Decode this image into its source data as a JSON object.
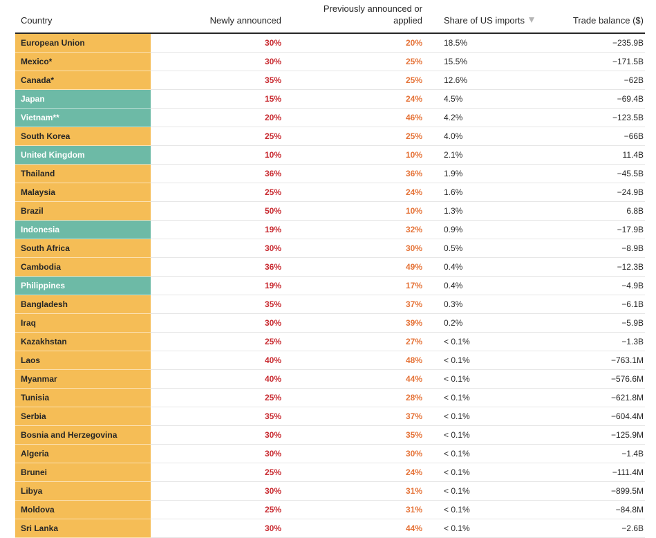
{
  "colors": {
    "region_yellow": "#f5bd56",
    "region_teal": "#6dbaa6",
    "newly_announced_red": "#c8292f",
    "previously_orange": "#e57338",
    "text": "#262626"
  },
  "header": {
    "country": "Country",
    "newly_announced": "Newly announced",
    "previously_line1": "Previously announced or",
    "previously_line2": "applied",
    "share": "Share of US imports",
    "share_sort_icon": "sort-desc-triangle",
    "trade_balance": "Trade balance ($)"
  },
  "rows": [
    {
      "country": "European Union",
      "color": "yellow",
      "new": "30%",
      "prev": "20%",
      "share": "18.5%",
      "trade": "−235.9B"
    },
    {
      "country": "Mexico*",
      "color": "yellow",
      "new": "30%",
      "prev": "25%",
      "share": "15.5%",
      "trade": "−171.5B"
    },
    {
      "country": "Canada*",
      "color": "yellow",
      "new": "35%",
      "prev": "25%",
      "share": "12.6%",
      "trade": "−62B"
    },
    {
      "country": "Japan",
      "color": "teal",
      "new": "15%",
      "prev": "24%",
      "share": "4.5%",
      "trade": "−69.4B"
    },
    {
      "country": "Vietnam**",
      "color": "teal",
      "new": "20%",
      "prev": "46%",
      "share": "4.2%",
      "trade": "−123.5B"
    },
    {
      "country": "South Korea",
      "color": "yellow",
      "new": "25%",
      "prev": "25%",
      "share": "4.0%",
      "trade": "−66B"
    },
    {
      "country": "United Kingdom",
      "color": "teal",
      "new": "10%",
      "prev": "10%",
      "share": "2.1%",
      "trade": "11.4B"
    },
    {
      "country": "Thailand",
      "color": "yellow",
      "new": "36%",
      "prev": "36%",
      "share": "1.9%",
      "trade": "−45.5B"
    },
    {
      "country": "Malaysia",
      "color": "yellow",
      "new": "25%",
      "prev": "24%",
      "share": "1.6%",
      "trade": "−24.9B"
    },
    {
      "country": "Brazil",
      "color": "yellow",
      "new": "50%",
      "prev": "10%",
      "share": "1.3%",
      "trade": "6.8B"
    },
    {
      "country": "Indonesia",
      "color": "teal",
      "new": "19%",
      "prev": "32%",
      "share": "0.9%",
      "trade": "−17.9B"
    },
    {
      "country": "South Africa",
      "color": "yellow",
      "new": "30%",
      "prev": "30%",
      "share": "0.5%",
      "trade": "−8.9B"
    },
    {
      "country": "Cambodia",
      "color": "yellow",
      "new": "36%",
      "prev": "49%",
      "share": "0.4%",
      "trade": "−12.3B"
    },
    {
      "country": "Philippines",
      "color": "teal",
      "new": "19%",
      "prev": "17%",
      "share": "0.4%",
      "trade": "−4.9B"
    },
    {
      "country": "Bangladesh",
      "color": "yellow",
      "new": "35%",
      "prev": "37%",
      "share": "0.3%",
      "trade": "−6.1B"
    },
    {
      "country": "Iraq",
      "color": "yellow",
      "new": "30%",
      "prev": "39%",
      "share": "0.2%",
      "trade": "−5.9B"
    },
    {
      "country": "Kazakhstan",
      "color": "yellow",
      "new": "25%",
      "prev": "27%",
      "share": "< 0.1%",
      "trade": "−1.3B"
    },
    {
      "country": "Laos",
      "color": "yellow",
      "new": "40%",
      "prev": "48%",
      "share": "< 0.1%",
      "trade": "−763.1M"
    },
    {
      "country": "Myanmar",
      "color": "yellow",
      "new": "40%",
      "prev": "44%",
      "share": "< 0.1%",
      "trade": "−576.6M"
    },
    {
      "country": "Tunisia",
      "color": "yellow",
      "new": "25%",
      "prev": "28%",
      "share": "< 0.1%",
      "trade": "−621.8M"
    },
    {
      "country": "Serbia",
      "color": "yellow",
      "new": "35%",
      "prev": "37%",
      "share": "< 0.1%",
      "trade": "−604.4M"
    },
    {
      "country": "Bosnia and Herzegovina",
      "color": "yellow",
      "new": "30%",
      "prev": "35%",
      "share": "< 0.1%",
      "trade": "−125.9M"
    },
    {
      "country": "Algeria",
      "color": "yellow",
      "new": "30%",
      "prev": "30%",
      "share": "< 0.1%",
      "trade": "−1.4B"
    },
    {
      "country": "Brunei",
      "color": "yellow",
      "new": "25%",
      "prev": "24%",
      "share": "< 0.1%",
      "trade": "−111.4M"
    },
    {
      "country": "Libya",
      "color": "yellow",
      "new": "30%",
      "prev": "31%",
      "share": "< 0.1%",
      "trade": "−899.5M"
    },
    {
      "country": "Moldova",
      "color": "yellow",
      "new": "25%",
      "prev": "31%",
      "share": "< 0.1%",
      "trade": "−84.8M"
    },
    {
      "country": "Sri Lanka",
      "color": "yellow",
      "new": "30%",
      "prev": "44%",
      "share": "< 0.1%",
      "trade": "−2.6B"
    }
  ]
}
